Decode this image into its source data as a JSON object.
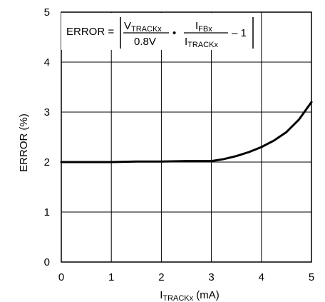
{
  "chart_data": {
    "type": "line",
    "title": "",
    "xlabel": {
      "main": "I",
      "sub": "TRACKx",
      "unit": " (mA)"
    },
    "ylabel": "ERROR (%)",
    "xlim": [
      0,
      5
    ],
    "ylim": [
      0,
      5
    ],
    "x_ticks": [
      0,
      1,
      2,
      3,
      4,
      5
    ],
    "y_ticks": [
      0,
      1,
      2,
      3,
      4,
      5
    ],
    "x_tick_labels": [
      "0",
      "1",
      "2",
      "3",
      "4",
      "5"
    ],
    "y_tick_labels": [
      "0",
      "1",
      "2",
      "3",
      "4",
      "5"
    ],
    "grid": true,
    "series": [
      {
        "x": [
          0,
          0.5,
          1,
          1.5,
          2,
          2.5,
          3,
          3.25,
          3.5,
          3.75,
          4,
          4.25,
          4.5,
          4.75,
          5
        ],
        "y": [
          2.0,
          2.0,
          2.0,
          2.01,
          2.01,
          2.02,
          2.02,
          2.06,
          2.12,
          2.2,
          2.3,
          2.43,
          2.6,
          2.85,
          3.2
        ]
      }
    ],
    "annotation": {
      "lhs": "ERROR =",
      "num1_main": "V",
      "num1_sub": "TRACKx",
      "den1": "0.8V",
      "dot": "•",
      "num2_main": "I",
      "num2_sub": "FBx",
      "den2_main": "I",
      "den2_sub": "TRACKx",
      "tail": "– 1"
    }
  }
}
